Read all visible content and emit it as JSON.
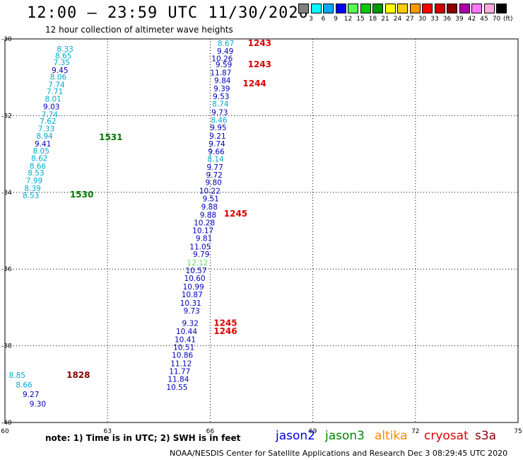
{
  "title": "12:00 — 23:59 UTC 11/30/2020",
  "subtitle": "12 hour collection of altimeter wave heights",
  "scale": {
    "unit": "(ft)",
    "colors": [
      "#808080",
      "#00ffff",
      "#00aaff",
      "#0000ff",
      "#55ff55",
      "#00cc00",
      "#009900",
      "#ffff00",
      "#ffcc00",
      "#ff9900",
      "#ff0000",
      "#cc0000",
      "#880000",
      "#aa00aa",
      "#ff77ff",
      "#ffaadd",
      "#000000"
    ],
    "labels": [
      "3",
      "6",
      "9",
      "12",
      "15",
      "18",
      "21",
      "24",
      "27",
      "30",
      "33",
      "36",
      "39",
      "42",
      "45",
      "70"
    ]
  },
  "chart_data": {
    "type": "map",
    "xlim": [
      60,
      75
    ],
    "ylim": [
      -40,
      -30
    ],
    "x_ticks": [
      "60",
      "63",
      "66",
      "69",
      "72",
      "75"
    ],
    "y_ticks": [
      "-30",
      "-32",
      "-34",
      "-36",
      "-38",
      "-40"
    ],
    "tracks": [
      {
        "color": "#00aacc",
        "points": [
          {
            "lon": 62.0,
            "lat": -30.15,
            "v": "8.33",
            "c": "#00aacc"
          },
          {
            "lon": 61.95,
            "lat": -30.32,
            "v": "8.65",
            "c": "#00aacc"
          },
          {
            "lon": 61.9,
            "lat": -30.5,
            "v": "7.35",
            "c": "#00aacc"
          },
          {
            "lon": 61.85,
            "lat": -30.7,
            "v": "9.45",
            "c": "#0000bb"
          },
          {
            "lon": 61.8,
            "lat": -30.88,
            "v": "8.06",
            "c": "#00aacc"
          },
          {
            "lon": 61.75,
            "lat": -31.08,
            "v": "7.74",
            "c": "#00aacc"
          },
          {
            "lon": 61.7,
            "lat": -31.25,
            "v": "7.71",
            "c": "#00aacc"
          },
          {
            "lon": 61.65,
            "lat": -31.45,
            "v": "8.01",
            "c": "#00aacc"
          },
          {
            "lon": 61.6,
            "lat": -31.65,
            "v": "9.03",
            "c": "#0000bb"
          },
          {
            "lon": 61.55,
            "lat": -31.85,
            "v": "7.74",
            "c": "#00aacc"
          },
          {
            "lon": 61.5,
            "lat": -32.03,
            "v": "7.62",
            "c": "#00aacc"
          },
          {
            "lon": 61.45,
            "lat": -32.22,
            "v": "7.33",
            "c": "#00aacc"
          },
          {
            "lon": 61.4,
            "lat": -32.42,
            "v": "8.94",
            "c": "#00aacc"
          },
          {
            "lon": 61.35,
            "lat": -32.62,
            "v": "9.41",
            "c": "#0000bb"
          },
          {
            "lon": 61.3,
            "lat": -32.8,
            "v": "8.05",
            "c": "#00aacc"
          },
          {
            "lon": 61.25,
            "lat": -33.0,
            "v": "8.62",
            "c": "#00aacc"
          },
          {
            "lon": 61.2,
            "lat": -33.2,
            "v": "8.66",
            "c": "#00aacc"
          },
          {
            "lon": 61.15,
            "lat": -33.38,
            "v": "8.53",
            "c": "#00aacc"
          },
          {
            "lon": 61.1,
            "lat": -33.58,
            "v": "7.99",
            "c": "#00aacc"
          },
          {
            "lon": 61.05,
            "lat": -33.78,
            "v": "8.39",
            "c": "#00aacc"
          },
          {
            "lon": 61.0,
            "lat": -33.97,
            "v": "8.53",
            "c": "#00aacc"
          }
        ]
      },
      {
        "color": "#0000bb",
        "points": [
          {
            "lon": 66.7,
            "lat": -30.0,
            "v": "8.67",
            "c": "#00aacc"
          },
          {
            "lon": 66.68,
            "lat": -30.2,
            "v": "9.49",
            "c": "#0000bb"
          },
          {
            "lon": 66.66,
            "lat": -30.4,
            "v": "10.26",
            "c": "#0000bb"
          },
          {
            "lon": 66.64,
            "lat": -30.55,
            "v": "9.59",
            "c": "#0000bb"
          },
          {
            "lon": 66.62,
            "lat": -30.77,
            "v": "11.87",
            "c": "#0000bb"
          },
          {
            "lon": 66.6,
            "lat": -30.97,
            "v": "9.84",
            "c": "#0000bb"
          },
          {
            "lon": 66.58,
            "lat": -31.18,
            "v": "9.39",
            "c": "#0000bb"
          },
          {
            "lon": 66.56,
            "lat": -31.38,
            "v": "9.53",
            "c": "#0000bb"
          },
          {
            "lon": 66.54,
            "lat": -31.58,
            "v": "8.74",
            "c": "#00aacc"
          },
          {
            "lon": 66.52,
            "lat": -31.8,
            "v": "9.73",
            "c": "#0000bb"
          },
          {
            "lon": 66.5,
            "lat": -32.0,
            "v": "8.46",
            "c": "#00aacc"
          },
          {
            "lon": 66.48,
            "lat": -32.2,
            "v": "9.95",
            "c": "#0000bb"
          },
          {
            "lon": 66.46,
            "lat": -32.42,
            "v": "9.21",
            "c": "#0000bb"
          },
          {
            "lon": 66.44,
            "lat": -32.62,
            "v": "9.74",
            "c": "#0000bb"
          },
          {
            "lon": 66.42,
            "lat": -32.82,
            "v": "9.66",
            "c": "#0000bb"
          },
          {
            "lon": 66.4,
            "lat": -33.02,
            "v": "8.14",
            "c": "#00aacc"
          },
          {
            "lon": 66.38,
            "lat": -33.23,
            "v": "9.77",
            "c": "#0000bb"
          },
          {
            "lon": 66.36,
            "lat": -33.43,
            "v": "9.72",
            "c": "#0000bb"
          },
          {
            "lon": 66.34,
            "lat": -33.63,
            "v": "9.80",
            "c": "#0000bb"
          },
          {
            "lon": 66.3,
            "lat": -33.85,
            "v": "10.22",
            "c": "#0000bb"
          },
          {
            "lon": 66.26,
            "lat": -34.05,
            "v": "9.51",
            "c": "#0000bb"
          },
          {
            "lon": 66.22,
            "lat": -34.26,
            "v": "9.88",
            "c": "#0000bb"
          },
          {
            "lon": 66.18,
            "lat": -34.47,
            "v": "9.88",
            "c": "#0000bb"
          },
          {
            "lon": 66.14,
            "lat": -34.68,
            "v": "10.28",
            "c": "#0000bb"
          },
          {
            "lon": 66.1,
            "lat": -34.88,
            "v": "10.17",
            "c": "#0000bb"
          },
          {
            "lon": 66.06,
            "lat": -35.08,
            "v": "9.81",
            "c": "#0000bb"
          },
          {
            "lon": 66.02,
            "lat": -35.3,
            "v": "11.05",
            "c": "#0000bb"
          },
          {
            "lon": 65.98,
            "lat": -35.5,
            "v": "9.79",
            "c": "#0000bb"
          },
          {
            "lon": 65.94,
            "lat": -35.72,
            "v": "12.12",
            "c": "#66dd66"
          },
          {
            "lon": 65.9,
            "lat": -35.92,
            "v": "10.57",
            "c": "#0000bb"
          },
          {
            "lon": 65.86,
            "lat": -36.13,
            "v": "10.60",
            "c": "#0000bb"
          },
          {
            "lon": 65.82,
            "lat": -36.35,
            "v": "10.99",
            "c": "#0000bb"
          },
          {
            "lon": 65.78,
            "lat": -36.55,
            "v": "10.87",
            "c": "#0000bb"
          },
          {
            "lon": 65.74,
            "lat": -36.77,
            "v": "10.31",
            "c": "#0000bb"
          },
          {
            "lon": 65.7,
            "lat": -36.97,
            "v": "9.73",
            "c": "#0000bb"
          },
          {
            "lon": 65.66,
            "lat": -37.3,
            "v": "9.32",
            "c": "#0000bb"
          },
          {
            "lon": 65.62,
            "lat": -37.51,
            "v": "10.44",
            "c": "#0000bb"
          },
          {
            "lon": 65.58,
            "lat": -37.72,
            "v": "10.41",
            "c": "#0000bb"
          },
          {
            "lon": 65.54,
            "lat": -37.92,
            "v": "10.51",
            "c": "#0000bb"
          },
          {
            "lon": 65.5,
            "lat": -38.13,
            "v": "10.86",
            "c": "#0000bb"
          },
          {
            "lon": 65.46,
            "lat": -38.35,
            "v": "11.12",
            "c": "#0000bb"
          },
          {
            "lon": 65.42,
            "lat": -38.55,
            "v": "11.77",
            "c": "#0000bb"
          },
          {
            "lon": 65.38,
            "lat": -38.75,
            "v": "11.84",
            "c": "#0000bb"
          },
          {
            "lon": 65.34,
            "lat": -38.97,
            "v": "10.55",
            "c": "#0000bb"
          }
        ]
      },
      {
        "color": "#00aacc",
        "points": [
          {
            "lon": 60.6,
            "lat": -38.65,
            "v": "8.85",
            "c": "#00aacc"
          },
          {
            "lon": 60.8,
            "lat": -38.9,
            "v": "8.66",
            "c": "#00aacc"
          },
          {
            "lon": 61.0,
            "lat": -39.15,
            "v": "9.27",
            "c": "#0000bb"
          },
          {
            "lon": 61.2,
            "lat": -39.4,
            "v": "9.30",
            "c": "#0000bb"
          }
        ]
      }
    ],
    "time_labels": [
      {
        "lon": 67.1,
        "lat": -30.0,
        "v": "1243",
        "c": "#dd0000"
      },
      {
        "lon": 67.1,
        "lat": -30.55,
        "v": "1243",
        "c": "#dd0000"
      },
      {
        "lon": 66.95,
        "lat": -31.05,
        "v": "1244",
        "c": "#dd0000"
      },
      {
        "lon": 62.75,
        "lat": -32.45,
        "v": "1531",
        "c": "#007700"
      },
      {
        "lon": 61.9,
        "lat": -33.95,
        "v": "1530",
        "c": "#007700"
      },
      {
        "lon": 66.4,
        "lat": -34.45,
        "v": "1245",
        "c": "#dd0000"
      },
      {
        "lon": 66.1,
        "lat": -37.3,
        "v": "1245",
        "c": "#dd0000"
      },
      {
        "lon": 66.1,
        "lat": -37.51,
        "v": "1246",
        "c": "#dd0000"
      },
      {
        "lon": 61.8,
        "lat": -38.65,
        "v": "1828",
        "c": "#880000"
      }
    ]
  },
  "note": "note: 1) Time is in UTC; 2) SWH is in feet",
  "satellites": [
    {
      "name": "jason2",
      "color": "#0000dd"
    },
    {
      "name": "jason3",
      "color": "#008800"
    },
    {
      "name": "altika",
      "color": "#ff8800"
    },
    {
      "name": "cryosat",
      "color": "#dd0000"
    },
    {
      "name": "s3a",
      "color": "#880000"
    }
  ],
  "footer": "NOAA/NESDIS Center for Satellite Applications and Research     Dec  3 08:29:45 UTC 2020"
}
